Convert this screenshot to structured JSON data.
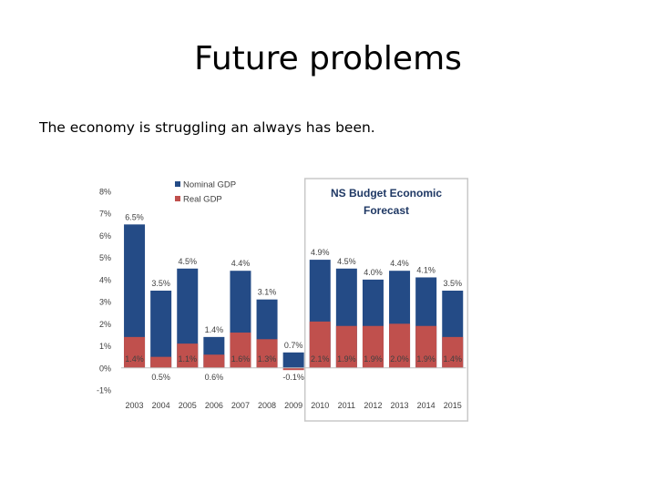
{
  "slide": {
    "title": "Future problems",
    "body": "The economy is struggling an always has been."
  },
  "chart_data": {
    "type": "bar",
    "categories": [
      "2003",
      "2004",
      "2005",
      "2006",
      "2007",
      "2008",
      "2009",
      "2010",
      "2011",
      "2012",
      "2013",
      "2014",
      "2015"
    ],
    "series": [
      {
        "name": "Nominal GDP",
        "color": "#244B86",
        "values": [
          6.5,
          3.5,
          4.5,
          1.4,
          4.4,
          3.1,
          0.7,
          4.9,
          4.5,
          4.0,
          4.4,
          4.1,
          3.5
        ]
      },
      {
        "name": "Real GDP",
        "color": "#C0504D",
        "values": [
          1.4,
          0.5,
          1.1,
          0.6,
          1.6,
          1.3,
          -0.1,
          2.1,
          1.9,
          1.9,
          2.0,
          1.9,
          1.4
        ]
      }
    ],
    "nominal_labels": [
      "6.5%",
      "3.5%",
      "4.5%",
      "1.4%",
      "4.4%",
      "3.1%",
      "0.7%",
      "4.9%",
      "4.5%",
      "4.0%",
      "4.4%",
      "4.1%",
      "3.5%"
    ],
    "real_labels": [
      "1.4%",
      "0.5%",
      "1.1%",
      "0.6%",
      "1.6%",
      "1.3%",
      "-0.1%",
      "2.1%",
      "1.9%",
      "1.9%",
      "2.0%",
      "1.9%",
      "1.4%"
    ],
    "y_ticks": [
      -1,
      0,
      1,
      2,
      3,
      4,
      5,
      6,
      7,
      8
    ],
    "y_tick_labels": [
      "-1%",
      "0%",
      "1%",
      "2%",
      "3%",
      "4%",
      "5%",
      "6%",
      "7%",
      "8%"
    ],
    "ylim": [
      -1,
      8
    ],
    "forecast_box": {
      "title_line1": "NS Budget Economic",
      "title_line2": "Forecast",
      "from_category": "2010"
    },
    "legend_position": "top"
  }
}
